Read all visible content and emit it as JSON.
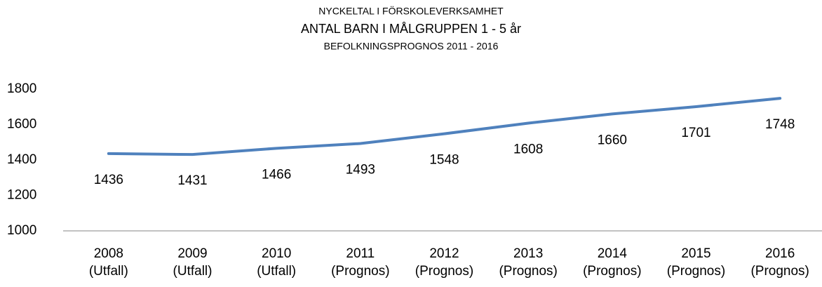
{
  "chart_data": {
    "type": "line",
    "supertitle": "NYCKELTAL I FÖRSKOLEVERKSAMHET",
    "title": "ANTAL BARN I MÅLGRUPPEN 1 - 5 år",
    "subtitle": "BEFOLKNINGSPROGNOS 2011 - 2016",
    "categories": [
      [
        "2008",
        "(Utfall)"
      ],
      [
        "2009",
        "(Utfall)"
      ],
      [
        "2010",
        "(Utfall)"
      ],
      [
        "2011",
        "(Prognos)"
      ],
      [
        "2012",
        "(Prognos)"
      ],
      [
        "2013",
        "(Prognos)"
      ],
      [
        "2014",
        "(Prognos)"
      ],
      [
        "2015",
        "(Prognos)"
      ],
      [
        "2016",
        "(Prognos)"
      ]
    ],
    "values": [
      1436,
      1431,
      1466,
      1493,
      1548,
      1608,
      1660,
      1701,
      1748
    ],
    "color": "#4f81bd",
    "ylim": [
      1000,
      1800
    ],
    "yticks": [
      1000,
      1200,
      1400,
      1600,
      1800
    ],
    "grid": false
  }
}
